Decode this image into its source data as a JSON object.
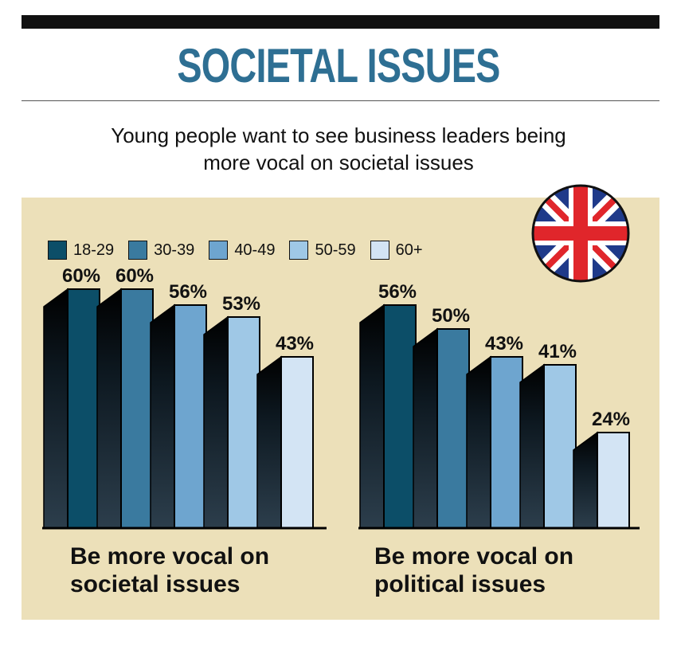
{
  "header": {
    "title": "SOCIETAL ISSUES",
    "subtitle_line1": "Young people want to see business leaders being",
    "subtitle_line2": "more vocal on societal issues"
  },
  "flag_icon": "union-jack-flag-icon",
  "colors": {
    "panel": "#ece0b9",
    "title": "#2e6f93",
    "series": [
      "#0c4e68",
      "#3a7a9f",
      "#6ea5cf",
      "#9fc8e6",
      "#d3e4f4"
    ]
  },
  "chart_data": {
    "type": "bar",
    "categories": [
      "Be more vocal on societal issues",
      "Be more vocal on political issues"
    ],
    "category_lines": [
      [
        "Be more vocal on",
        "societal issues"
      ],
      [
        "Be more vocal on",
        "political issues"
      ]
    ],
    "series": [
      {
        "name": "18-29",
        "values": [
          60,
          56
        ],
        "labels": [
          "60%",
          "56%"
        ]
      },
      {
        "name": "30-39",
        "values": [
          60,
          50
        ],
        "labels": [
          "60%",
          "50%"
        ]
      },
      {
        "name": "40-49",
        "values": [
          56,
          43
        ],
        "labels": [
          "56%",
          "43%"
        ]
      },
      {
        "name": "50-59",
        "values": [
          53,
          41
        ],
        "labels": [
          "53%",
          "41%"
        ]
      },
      {
        "name": "60+",
        "values": [
          43,
          24
        ],
        "labels": [
          "43%",
          "24%"
        ]
      }
    ],
    "ylim": [
      0,
      100
    ],
    "legend_position": "top-left",
    "grid": false
  }
}
